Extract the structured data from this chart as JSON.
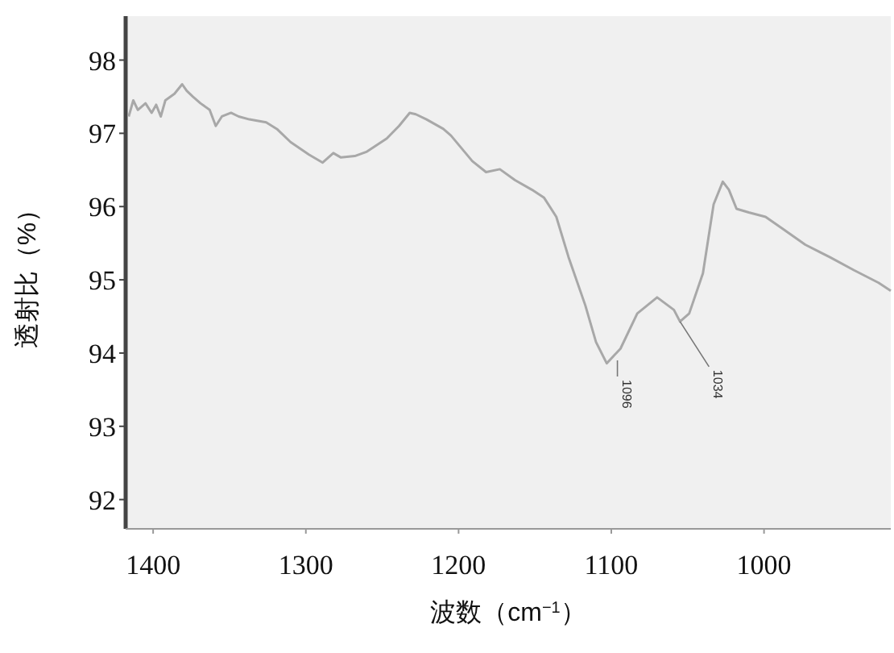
{
  "chart_data": {
    "type": "line",
    "xlabel": "波数（cm$^{−1}$）",
    "ylabel": "透射比（%）",
    "xlim": [
      1418,
      917
    ],
    "xticks": [
      1400,
      1300,
      1200,
      1100,
      1000
    ],
    "ylim": [
      91.6,
      98.6
    ],
    "yticks": [
      92,
      93,
      94,
      95,
      96,
      97,
      98
    ],
    "grid": false,
    "marker": "none",
    "line_style": "solid",
    "series": [
      {
        "color": "#a8a8a8",
        "x": [
          1416,
          1413,
          1410,
          1405,
          1401,
          1398,
          1395,
          1392,
          1386,
          1381,
          1378,
          1374,
          1369,
          1363,
          1359,
          1355,
          1349,
          1344,
          1337,
          1326,
          1319,
          1310,
          1298,
          1289,
          1282,
          1277,
          1268,
          1260,
          1247,
          1239,
          1232,
          1228,
          1221,
          1210,
          1205,
          1191,
          1182,
          1173,
          1163,
          1152,
          1144,
          1136,
          1128,
          1117,
          1110,
          1103,
          1094,
          1083,
          1070,
          1059,
          1055,
          1049,
          1040,
          1033,
          1027,
          1023,
          1018,
          1010,
          999,
          988,
          973,
          957,
          941,
          925,
          917
        ],
        "values": [
          97.23,
          97.45,
          97.32,
          97.41,
          97.28,
          97.39,
          97.23,
          97.45,
          97.54,
          97.67,
          97.58,
          97.5,
          97.41,
          97.32,
          97.1,
          97.23,
          97.28,
          97.23,
          97.19,
          97.15,
          97.06,
          96.88,
          96.71,
          96.6,
          96.73,
          96.67,
          96.69,
          96.75,
          96.93,
          97.1,
          97.28,
          97.26,
          97.19,
          97.06,
          96.97,
          96.62,
          96.47,
          96.51,
          96.36,
          96.23,
          96.12,
          95.86,
          95.31,
          94.65,
          94.15,
          93.86,
          94.06,
          94.54,
          94.76,
          94.59,
          94.43,
          94.54,
          95.09,
          96.03,
          96.34,
          96.23,
          95.97,
          95.92,
          95.86,
          95.7,
          95.48,
          95.31,
          95.13,
          94.96,
          94.85
        ]
      }
    ],
    "annotations": [
      {
        "text": "1096",
        "x": 1096,
        "y": 93.9
      },
      {
        "text": "1034",
        "x": 1055,
        "y": 94.43
      }
    ]
  }
}
